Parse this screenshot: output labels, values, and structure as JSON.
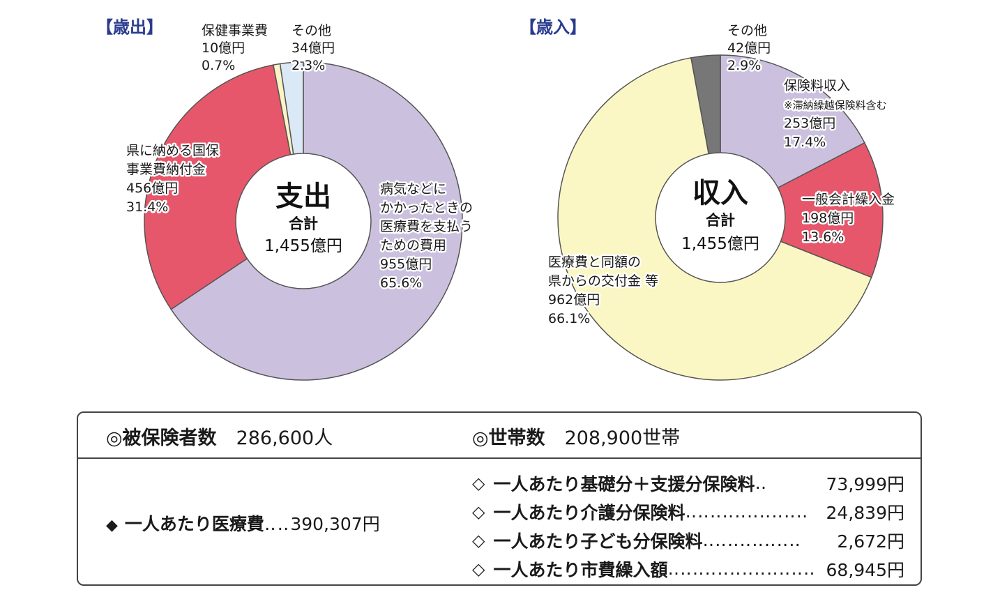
{
  "expenditure": {
    "title": "【歳出】",
    "center_title": "支出",
    "center_sub": "合計",
    "center_total": "1,455億円",
    "slices": [
      {
        "name_lines": [
          "病気などに",
          "かかったときの",
          "医療費を支払う",
          "ための費用"
        ],
        "amount": "955億円",
        "pct": "65.6%",
        "value": 955,
        "color": "#cbc1df"
      },
      {
        "name_lines": [
          "県に納める国保",
          "事業費納付金"
        ],
        "amount": "456億円",
        "pct": "31.4%",
        "value": 456,
        "color": "#e6576b"
      },
      {
        "name_lines": [
          "保健事業費"
        ],
        "amount": "10億円",
        "pct": "0.7%",
        "value": 10,
        "color": "#fbf5c5"
      },
      {
        "name_lines": [
          "その他"
        ],
        "amount": "34億円",
        "pct": "2.3%",
        "value": 34,
        "color": "#dbe8f6"
      }
    ]
  },
  "revenue": {
    "title": "【歳入】",
    "center_title": "収入",
    "center_sub": "合計",
    "center_total": "1,455億円",
    "slices": [
      {
        "name_lines": [
          "保険料収入"
        ],
        "note": "※滞納繰越保険料含む",
        "amount": "253億円",
        "pct": "17.4%",
        "value": 253,
        "color": "#cbc1df"
      },
      {
        "name_lines": [
          "一般会計繰入金"
        ],
        "amount": "198億円",
        "pct": "13.6%",
        "value": 198,
        "color": "#e6576b"
      },
      {
        "name_lines": [
          "医療費と同額の",
          "県からの交付金 等"
        ],
        "amount": "962億円",
        "pct": "66.1%",
        "value": 962,
        "color": "#fbf7c4"
      },
      {
        "name_lines": [
          "その他"
        ],
        "amount": "42億円",
        "pct": "2.9%",
        "value": 42,
        "color": "#777777"
      }
    ]
  },
  "chart_data": [
    {
      "type": "pie",
      "title": "【歳出】",
      "categories": [
        "病気などにかかったときの医療費を支払うための費用",
        "県に納める国保事業費納付金",
        "保健事業費",
        "その他"
      ],
      "values": [
        955,
        456,
        10,
        34
      ],
      "percentages": [
        65.6,
        31.4,
        0.7,
        2.3
      ],
      "unit": "億円",
      "total": 1455
    },
    {
      "type": "pie",
      "title": "【歳入】",
      "categories": [
        "保険料収入",
        "一般会計繰入金",
        "医療費と同額の県からの交付金 等",
        "その他"
      ],
      "values": [
        253,
        198,
        962,
        42
      ],
      "percentages": [
        17.4,
        13.6,
        66.1,
        2.9
      ],
      "unit": "億円",
      "total": 1455
    }
  ],
  "stats": {
    "insured_label": "◎被保険者数",
    "insured_value": "286,600人",
    "households_label": "◎世帯数",
    "households_value": "208,900世帯",
    "medical": {
      "symbol": "◆",
      "label": "一人あたり医療費",
      "dots": "‥‥",
      "value": "390,307円"
    },
    "premiums": [
      {
        "symbol": "◇",
        "label": "一人あたり基礎分＋支援分保険料",
        "dots": "‥",
        "value": "73,999円"
      },
      {
        "symbol": "◇",
        "label": "一人あたり介護分保険料",
        "dots": "‥‥‥‥‥‥‥‥‥‥",
        "value": "24,839円"
      },
      {
        "symbol": "◇",
        "label": "一人あたり子ども分保険料",
        "dots": "‥‥‥‥‥‥‥‥",
        "value": "2,672円"
      },
      {
        "symbol": "◇",
        "label": "一人あたり市費繰入額",
        "dots": "‥‥‥‥‥‥‥‥‥‥‥‥",
        "value": "68,945円"
      }
    ]
  }
}
